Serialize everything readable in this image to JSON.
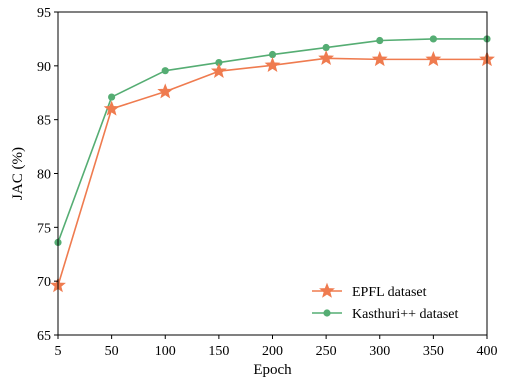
{
  "chart_data": {
    "type": "line",
    "title": "",
    "xlabel": "Epoch",
    "ylabel": "JAC (%)",
    "x_categories": [
      "5",
      "50",
      "100",
      "150",
      "200",
      "250",
      "300",
      "350",
      "400"
    ],
    "ylim": [
      65,
      95
    ],
    "yticks": [
      65,
      70,
      75,
      80,
      85,
      90,
      95
    ],
    "ytick_labels": [
      "65",
      "70",
      "75",
      "80",
      "85",
      "90",
      "95"
    ],
    "grid": false,
    "legend_position": "lower-right",
    "series": [
      {
        "name": "EPFL dataset",
        "color": "#ef7b4f",
        "marker": "star",
        "values": [
          69.6,
          86.0,
          87.6,
          89.5,
          90.05,
          90.7,
          90.6,
          90.6,
          90.6
        ]
      },
      {
        "name": "Kasthuri++ dataset",
        "color": "#55ad73",
        "marker": "circle",
        "values": [
          73.6,
          87.1,
          89.55,
          90.3,
          91.05,
          91.7,
          92.35,
          92.5,
          92.5
        ]
      }
    ]
  }
}
